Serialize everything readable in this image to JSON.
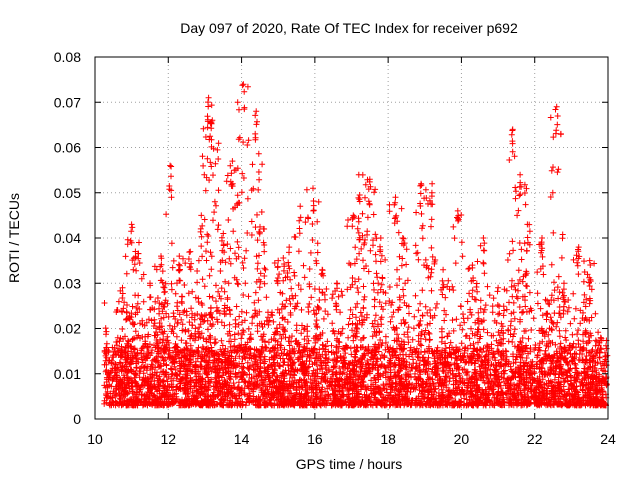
{
  "chart_data": {
    "type": "scatter",
    "title": "Day 097 of 2020, Rate Of TEC Index for receiver p692",
    "xlabel": "GPS time / hours",
    "ylabel": "ROTI / TECUs",
    "xlim": [
      10,
      24
    ],
    "ylim": [
      0,
      0.08
    ],
    "grid": true,
    "marker": "+",
    "x_ticks": [
      "10",
      "12",
      "14",
      "16",
      "18",
      "20",
      "22",
      "24"
    ],
    "y_ticks": [
      "0",
      "0.01",
      "0.02",
      "0.03",
      "0.04",
      "0.05",
      "0.06",
      "0.07",
      "0.08"
    ],
    "colors": {
      "points": "#ff0000",
      "grid": "#a0a0a0",
      "axis": "#000000"
    },
    "series": [
      {
        "name": "ROTI",
        "peaks": [
          {
            "x": 10.75,
            "y": 0.029
          },
          {
            "x": 11.0,
            "y": 0.043
          },
          {
            "x": 11.2,
            "y": 0.039
          },
          {
            "x": 11.5,
            "y": 0.03
          },
          {
            "x": 11.8,
            "y": 0.036
          },
          {
            "x": 12.05,
            "y": 0.056
          },
          {
            "x": 12.3,
            "y": 0.036
          },
          {
            "x": 12.6,
            "y": 0.037
          },
          {
            "x": 12.9,
            "y": 0.045
          },
          {
            "x": 13.1,
            "y": 0.071
          },
          {
            "x": 13.2,
            "y": 0.066
          },
          {
            "x": 13.5,
            "y": 0.041
          },
          {
            "x": 13.75,
            "y": 0.057
          },
          {
            "x": 14.05,
            "y": 0.074
          },
          {
            "x": 14.4,
            "y": 0.068
          },
          {
            "x": 14.6,
            "y": 0.042
          },
          {
            "x": 15.0,
            "y": 0.035
          },
          {
            "x": 15.3,
            "y": 0.038
          },
          {
            "x": 15.6,
            "y": 0.047
          },
          {
            "x": 15.95,
            "y": 0.051
          },
          {
            "x": 16.2,
            "y": 0.033
          },
          {
            "x": 16.6,
            "y": 0.03
          },
          {
            "x": 17.05,
            "y": 0.045
          },
          {
            "x": 17.2,
            "y": 0.054
          },
          {
            "x": 17.5,
            "y": 0.053
          },
          {
            "x": 17.8,
            "y": 0.04
          },
          {
            "x": 18.2,
            "y": 0.049
          },
          {
            "x": 18.4,
            "y": 0.04
          },
          {
            "x": 18.9,
            "y": 0.052
          },
          {
            "x": 19.2,
            "y": 0.052
          },
          {
            "x": 19.5,
            "y": 0.033
          },
          {
            "x": 19.9,
            "y": 0.046
          },
          {
            "x": 20.3,
            "y": 0.034
          },
          {
            "x": 20.6,
            "y": 0.04
          },
          {
            "x": 21.0,
            "y": 0.029
          },
          {
            "x": 21.4,
            "y": 0.064
          },
          {
            "x": 21.6,
            "y": 0.054
          },
          {
            "x": 21.8,
            "y": 0.043
          },
          {
            "x": 22.2,
            "y": 0.04
          },
          {
            "x": 22.6,
            "y": 0.069
          },
          {
            "x": 22.8,
            "y": 0.03
          },
          {
            "x": 23.2,
            "y": 0.038
          },
          {
            "x": 23.5,
            "y": 0.035
          },
          {
            "x": 23.8,
            "y": 0.018
          }
        ],
        "baseline_range": [
          0.003,
          0.016
        ],
        "point_count": 3400
      }
    ]
  }
}
